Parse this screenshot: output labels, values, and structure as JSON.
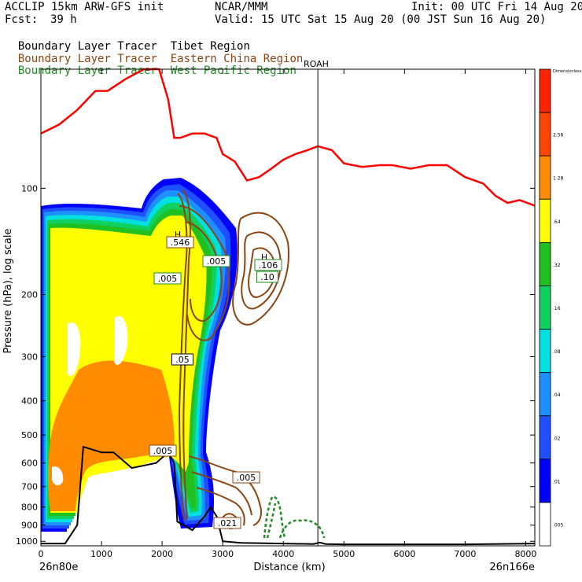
{
  "header": {
    "model": "ACCLIP 15km ARW-GFS init",
    "center": "NCAR/MMM",
    "init": "Init: 00 UTC Fri 14 Aug 20",
    "fcst_label": "Fcst:",
    "fcst_value": "39 h",
    "valid": "Valid: 15 UTC Sat 15 Aug 20 (00 JST Sun 16 Aug 20)"
  },
  "legend": [
    {
      "prefix": "Boundary Layer Tracer",
      "region": "Tibet Region",
      "color": "#000000"
    },
    {
      "prefix": "Boundary Layer Tracer",
      "region": "Eastern China Region",
      "color": "#8b4513"
    },
    {
      "prefix": "Boundary Layer Tracer",
      "region": "West Pacific Region",
      "color": "#228b22"
    }
  ],
  "marker_label": "ROAH",
  "colors": {
    "tropopause": "#ff0000",
    "terrain": "#000000",
    "eastern_china": "#8b4513",
    "west_pacific": "#228b22"
  },
  "colorbar": {
    "title": "Dimensionless",
    "levels": [
      {
        "label": ".005",
        "color": "#ffffff"
      },
      {
        "label": ".01",
        "color": "#0000ff"
      },
      {
        "label": ".02",
        "color": "#1e50ff"
      },
      {
        "label": ".04",
        "color": "#1e90ff"
      },
      {
        "label": ".08",
        "color": "#00e0e0"
      },
      {
        "label": ".16",
        "color": "#10d060"
      },
      {
        "label": ".32",
        "color": "#20c020"
      },
      {
        "label": ".64",
        "color": "#ffff00"
      },
      {
        "label": "1.28",
        "color": "#ff8c00"
      },
      {
        "label": "2.56",
        "color": "#ff4500"
      },
      {
        "label": "",
        "color": "#ff2400"
      }
    ]
  },
  "chart_data": {
    "type": "area",
    "title": "",
    "xlabel": "Distance (km)",
    "ylabel": "Pressure (hPa), log scale",
    "xlim": [
      0,
      8150
    ],
    "ylim": [
      1030,
      46
    ],
    "xticks": [
      0,
      1000,
      2000,
      3000,
      4000,
      5000,
      6000,
      7000,
      8000
    ],
    "yticks": [
      100,
      200,
      300,
      400,
      500,
      600,
      700,
      800,
      900,
      1000
    ],
    "x_endpoints": {
      "left": "26n80e",
      "right": "26n166e"
    },
    "marker_x_km": 4570,
    "series": [
      {
        "name": "tropopause",
        "x": [
          0,
          300,
          600,
          900,
          1100,
          1400,
          1700,
          1950,
          2100,
          2200,
          2300,
          2500,
          2700,
          2900,
          3000,
          3200,
          3400,
          3600,
          3800,
          4000,
          4200,
          4400,
          4570,
          4800,
          5000,
          5300,
          5600,
          5800,
          6100,
          6400,
          6700,
          7000,
          7300,
          7500,
          7700,
          7900,
          8150
        ],
        "p": [
          70,
          66,
          60,
          53,
          53,
          49,
          46,
          46,
          56,
          72,
          72,
          70,
          70,
          72,
          80,
          84,
          95,
          93,
          88,
          83,
          80,
          78,
          76,
          78,
          85,
          87,
          86,
          86,
          88,
          86,
          86,
          93,
          97,
          105,
          110,
          108,
          112
        ]
      },
      {
        "name": "terrain",
        "x": [
          0,
          400,
          600,
          700,
          1000,
          1200,
          1500,
          1900,
          2100,
          2200,
          2250,
          2500,
          2700,
          2800,
          2900,
          3000,
          3300,
          4000,
          4500,
          4600,
          4700,
          5000,
          6000,
          7000,
          8150
        ],
        "p": [
          1015,
          1015,
          900,
          540,
          560,
          560,
          620,
          600,
          560,
          600,
          880,
          930,
          850,
          800,
          850,
          1000,
          1010,
          1015,
          1018,
          1008,
          1018,
          1020,
          1020,
          1020,
          1015
        ]
      },
      {
        "name": "eastern_china_contours",
        "contour_labels": [
          ".546",
          ".005",
          ".005",
          ".005",
          ".005",
          ".021"
        ]
      },
      {
        "name": "west_pacific_contours",
        "contour_labels": [
          ".005",
          ".106",
          ".10"
        ]
      }
    ],
    "annotations": [
      "H",
      "H",
      ".546",
      ".005",
      ".005",
      ".106",
      ".10",
      ".05",
      ".005",
      ".005",
      ".021"
    ]
  }
}
